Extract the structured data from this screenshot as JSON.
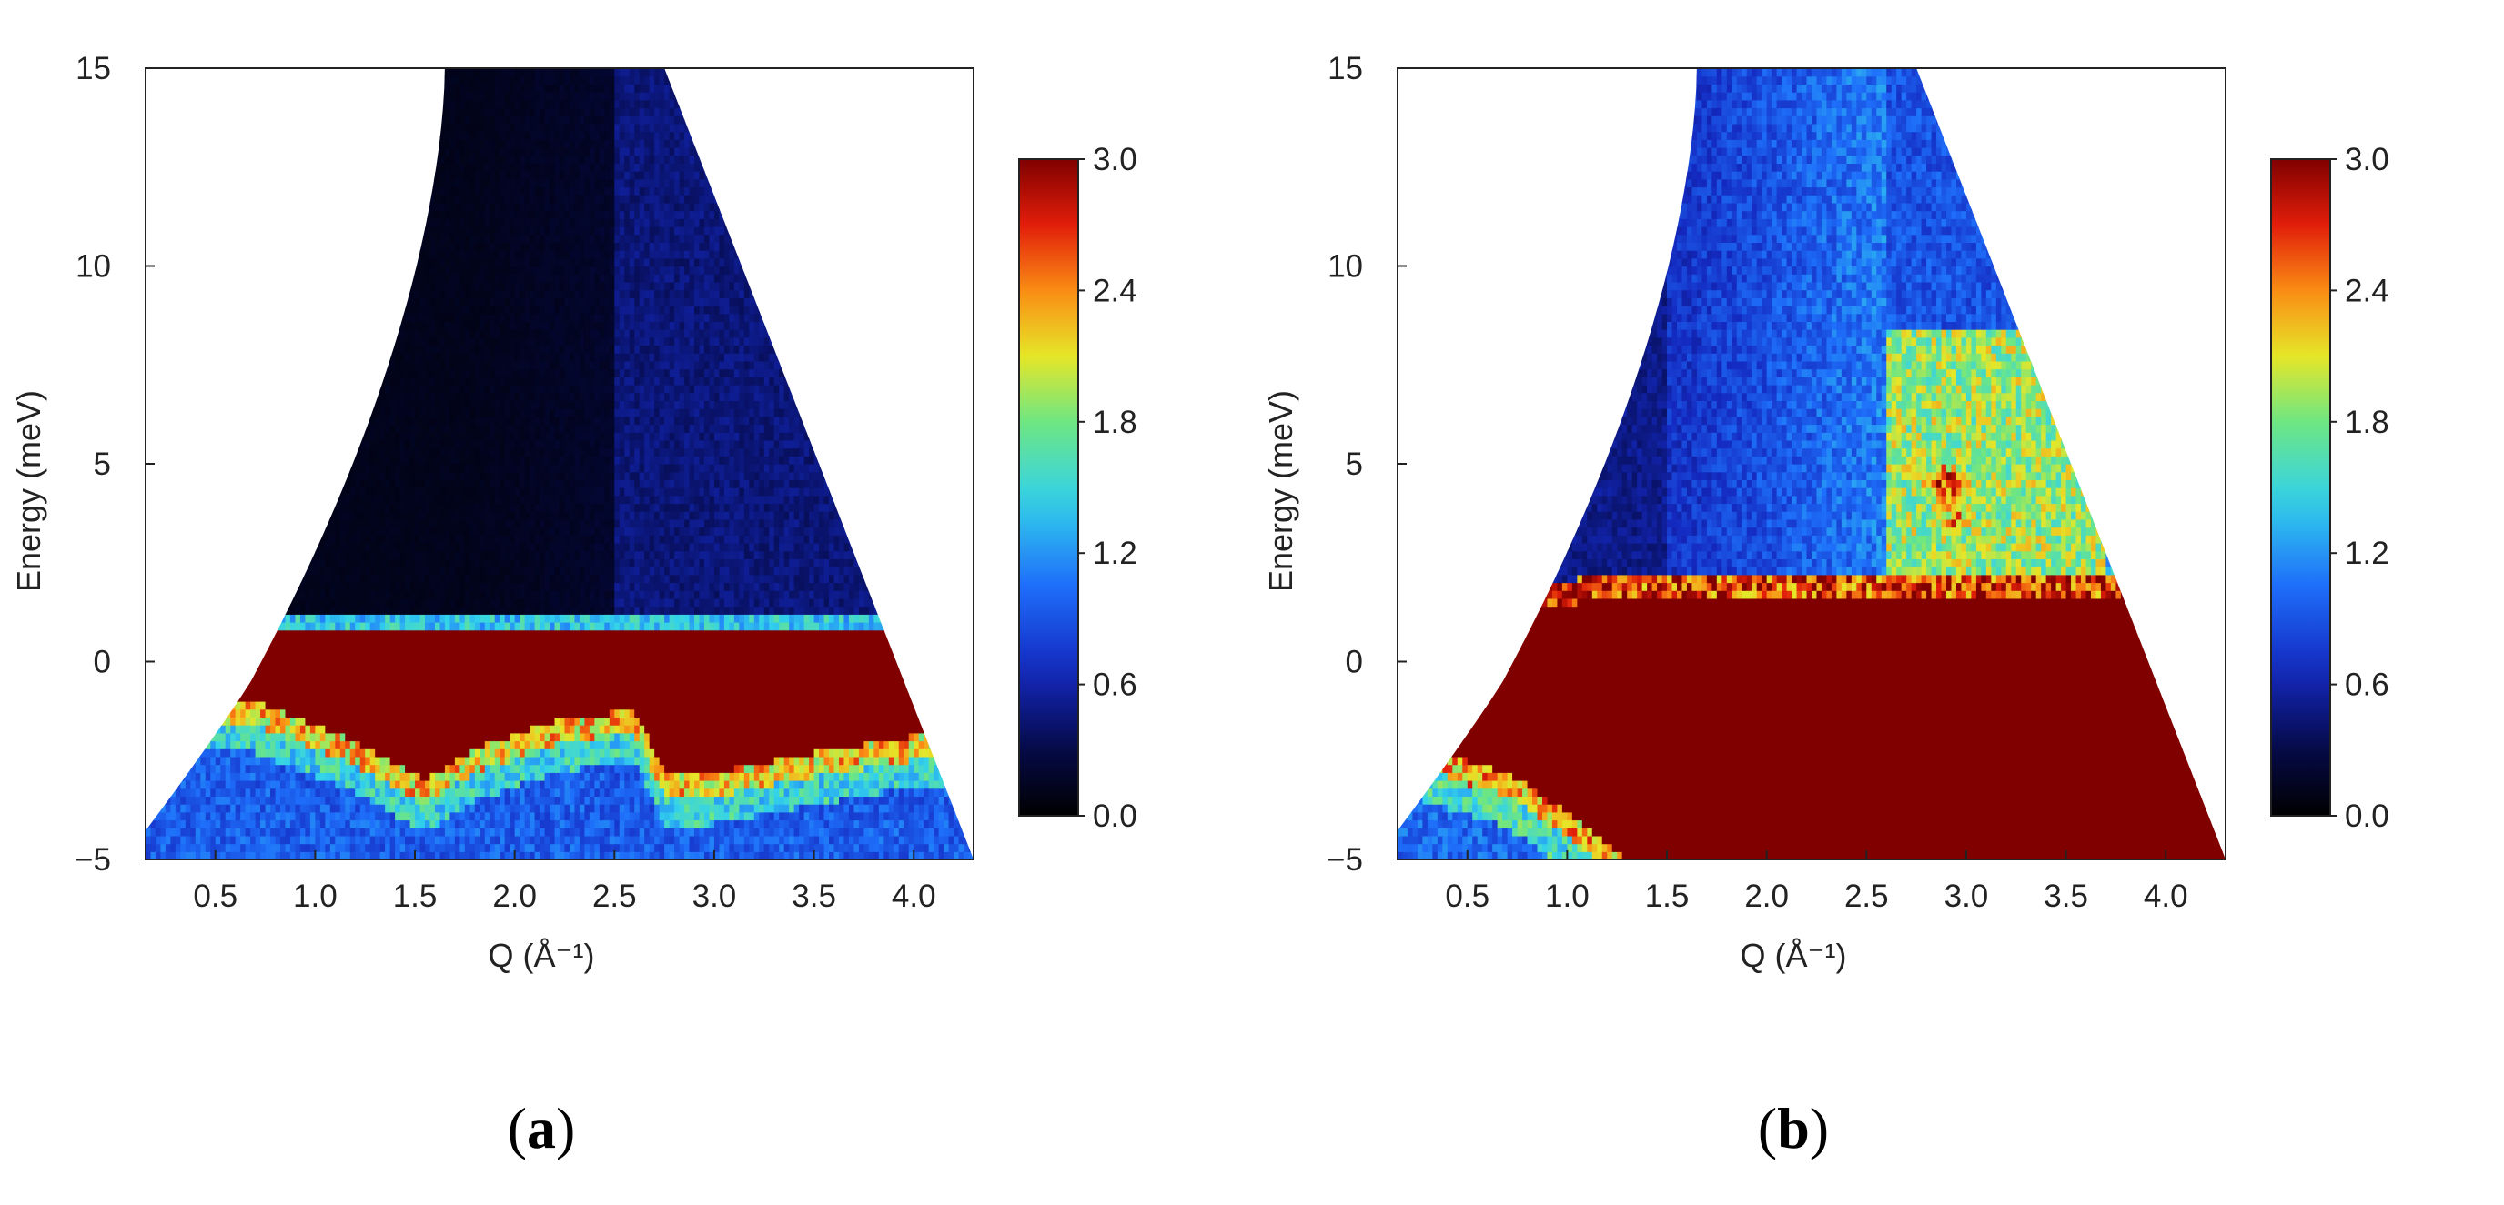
{
  "chart_data": [
    {
      "type": "heatmap",
      "panel_label": "(a)",
      "panel_letter": "a",
      "xlabel": "Q (Å⁻¹)",
      "ylabel": "Energy (meV)",
      "xlim": [
        0.15,
        4.3
      ],
      "ylim": [
        -5,
        15
      ],
      "x_ticks": [
        "0.5",
        "1.0",
        "1.5",
        "2.0",
        "2.5",
        "3.0",
        "3.5",
        "4.0"
      ],
      "x_tick_values": [
        0.5,
        1.0,
        1.5,
        2.0,
        2.5,
        3.0,
        3.5,
        4.0
      ],
      "y_ticks": [
        "−5",
        "0",
        "5",
        "10",
        "15"
      ],
      "y_tick_values": [
        -5,
        0,
        5,
        10,
        15
      ],
      "colorbar": {
        "range": [
          0.0,
          3.0
        ],
        "ticks": [
          "0.0",
          "0.6",
          "1.2",
          "1.8",
          "2.4",
          "3.0"
        ],
        "tick_values": [
          0.0,
          0.6,
          1.2,
          1.8,
          2.4,
          3.0
        ],
        "colormap": "jet"
      },
      "elastic_line_top_meV": [
        [
          0.15,
          0.7
        ],
        [
          1.5,
          0.9
        ],
        [
          2.6,
          0.8
        ],
        [
          4.0,
          0.9
        ]
      ],
      "high_intensity_bottom_meV": [
        [
          0.2,
          -0.8
        ],
        [
          0.7,
          -1.0
        ],
        [
          1.2,
          -2.0
        ],
        [
          1.55,
          -3.0
        ],
        [
          1.8,
          -2.2
        ],
        [
          2.2,
          -1.5
        ],
        [
          2.6,
          -1.2
        ],
        [
          2.75,
          -2.8
        ],
        [
          3.0,
          -2.8
        ],
        [
          3.5,
          -2.3
        ],
        [
          4.1,
          -1.8
        ]
      ],
      "region_intensity": {
        "Q_below_2.5_E_above_1": 0.15,
        "Q_above_2.5_E_above_1": 0.5,
        "E_below_elastic": 1.0
      }
    },
    {
      "type": "heatmap",
      "panel_label": "(b)",
      "panel_letter": "b",
      "xlabel": "Q (Å⁻¹)",
      "ylabel": "Energy (meV)",
      "xlim": [
        0.15,
        4.3
      ],
      "ylim": [
        -5,
        15
      ],
      "x_ticks": [
        "0.5",
        "1.0",
        "1.5",
        "2.0",
        "2.5",
        "3.0",
        "3.5",
        "4.0"
      ],
      "x_tick_values": [
        0.5,
        1.0,
        1.5,
        2.0,
        2.5,
        3.0,
        3.5,
        4.0
      ],
      "y_ticks": [
        "−5",
        "0",
        "5",
        "10",
        "15"
      ],
      "y_tick_values": [
        -5,
        0,
        5,
        10,
        15
      ],
      "colorbar": {
        "range": [
          0.0,
          3.0
        ],
        "ticks": [
          "0.0",
          "0.6",
          "1.2",
          "1.8",
          "2.4",
          "3.0"
        ],
        "tick_values": [
          0.0,
          0.6,
          1.2,
          1.8,
          2.4,
          3.0
        ],
        "colormap": "jet"
      },
      "elastic_line_top_meV": [
        [
          0.15,
          1.3
        ],
        [
          1.5,
          1.6
        ],
        [
          2.6,
          1.5
        ],
        [
          4.0,
          1.7
        ]
      ],
      "high_intensity_bottom_meV": [
        [
          0.2,
          -2.0
        ],
        [
          0.7,
          -2.8
        ],
        [
          1.0,
          -3.8
        ],
        [
          1.3,
          -5.0
        ]
      ],
      "hot_spots": [
        {
          "Q": 2.3,
          "E": -4.2,
          "value": 2.4
        },
        {
          "Q": 2.9,
          "E": 4.5,
          "value": 2.8
        },
        {
          "Q": 2.95,
          "E": 3.6,
          "value": 2.5
        }
      ],
      "region_intensity": {
        "Q_below_1.5_E_above_2": 0.5,
        "Q_2.0_to_2.6_E_above_2": 1.1,
        "Q_above_2.6_E_1.5_to_8": 1.9,
        "Q_above_2.6_E_above_8": 0.8
      }
    }
  ]
}
